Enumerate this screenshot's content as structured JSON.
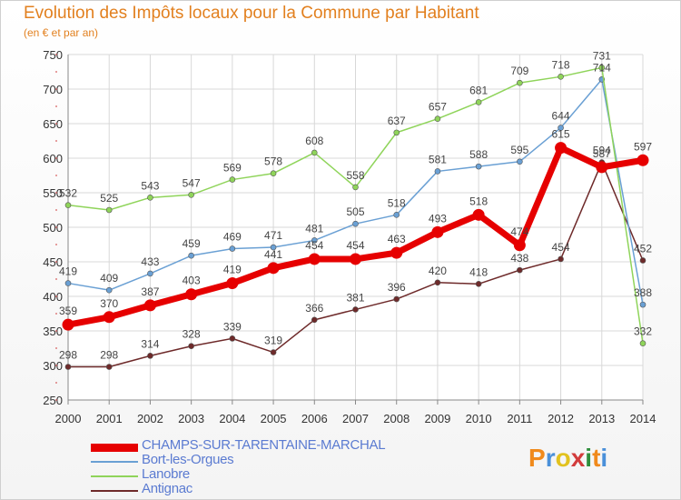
{
  "title": "Evolution des Impôts locaux pour la Commune par Habitant",
  "subtitle": "(en € et par an)",
  "logo": {
    "text": "Proxiti",
    "colors": [
      "#f08a1c",
      "#4a90d9",
      "#e2c21f",
      "#d23c3c",
      "#2f8f3c",
      "#f08a1c",
      "#4a90d9"
    ]
  },
  "colors": {
    "title": "#e2801f",
    "grid": "#d8d8d8",
    "axis": "#888888",
    "tick_label": "#333333",
    "data_label": "#444444",
    "legend_text": "#5b7bd1"
  },
  "chart_data": {
    "type": "line",
    "title": "Evolution des Impôts locaux pour la Commune par Habitant",
    "subtitle": "(en € et par an)",
    "xlabel": "",
    "ylabel": "",
    "x": [
      "2000",
      "2001",
      "2002",
      "2003",
      "2004",
      "2005",
      "2006",
      "2007",
      "2008",
      "2009",
      "2010",
      "2011",
      "2012",
      "2013",
      "2014"
    ],
    "yticks": [
      250,
      300,
      350,
      400,
      450,
      500,
      550,
      600,
      650,
      700,
      750
    ],
    "ylim": [
      250,
      750
    ],
    "grid": true,
    "legend_position": "bottom-left",
    "series": [
      {
        "name": "CHAMPS-SUR-TARENTAINE-MARCHAL",
        "color": "#e60000",
        "width": 7,
        "marker": 6,
        "values": [
          359,
          370,
          387,
          403,
          419,
          441,
          454,
          454,
          463,
          493,
          518,
          474,
          615,
          587,
          597
        ]
      },
      {
        "name": "Bort-les-Orgues",
        "color": "#6aa0d4",
        "width": 1.5,
        "marker": 3,
        "values": [
          419,
          409,
          433,
          459,
          469,
          471,
          481,
          505,
          518,
          581,
          588,
          595,
          644,
          714,
          388
        ]
      },
      {
        "name": "Lanobre",
        "color": "#8fd45a",
        "width": 1.5,
        "marker": 3,
        "values": [
          532,
          525,
          543,
          547,
          569,
          578,
          608,
          558,
          637,
          657,
          681,
          709,
          718,
          731,
          332
        ]
      },
      {
        "name": "Antignac",
        "color": "#6e2a2a",
        "width": 1.5,
        "marker": 3,
        "values": [
          298,
          298,
          314,
          328,
          339,
          319,
          366,
          381,
          396,
          420,
          418,
          438,
          454,
          594,
          452
        ]
      }
    ]
  }
}
